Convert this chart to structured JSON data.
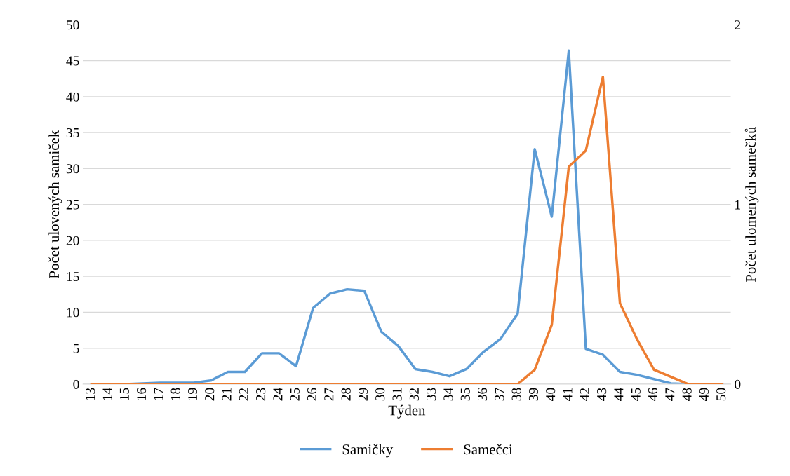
{
  "chart_data": {
    "type": "line",
    "xlabel": "Týden",
    "ylabel": "Počet ulovených samiček",
    "y2label": "Počet ulomených samečků",
    "categories": [
      "13",
      "14",
      "15",
      "16",
      "17",
      "18",
      "19",
      "20",
      "21",
      "22",
      "23",
      "24",
      "25",
      "26",
      "27",
      "28",
      "29",
      "30",
      "31",
      "32",
      "33",
      "34",
      "35",
      "36",
      "37",
      "38",
      "39",
      "40",
      "41",
      "42",
      "43",
      "44",
      "45",
      "46",
      "47",
      "48",
      "49",
      "50"
    ],
    "series": [
      {
        "name": "Samičky",
        "color": "#5b9bd5",
        "values": [
          null,
          null,
          0,
          0.1,
          0.2,
          0.2,
          0.2,
          0.5,
          1.7,
          1.7,
          4.3,
          4.3,
          2.5,
          10.6,
          12.6,
          13.2,
          13,
          7.3,
          5.3,
          2.1,
          1.7,
          1.1,
          2.1,
          4.5,
          6.3,
          9.8,
          32.7,
          23.3,
          46.4,
          4.9,
          4.1,
          1.7,
          1.3,
          0.7,
          0.1,
          0,
          0,
          0
        ]
      },
      {
        "name": "Samečci",
        "color": "#ed7d31",
        "axis": "y2",
        "values": [
          0,
          0,
          0,
          0,
          0,
          0,
          0,
          0,
          0,
          0,
          0,
          0,
          0,
          0,
          0,
          0,
          0,
          0,
          0,
          0,
          0,
          0,
          0,
          0,
          0,
          0,
          0.08,
          0.33,
          1.21,
          1.3,
          1.71,
          0.45,
          0.25,
          0.08,
          0.04,
          0,
          0,
          0
        ]
      }
    ],
    "ylim": [
      0,
      50
    ],
    "yticks": [
      0,
      5,
      10,
      15,
      20,
      25,
      30,
      35,
      40,
      45,
      50
    ],
    "y2lim": [
      0,
      2
    ],
    "y2ticks": [
      0,
      1,
      2
    ],
    "grid": "y",
    "legend": "bottom",
    "marker": "none",
    "line_style": "solid"
  }
}
